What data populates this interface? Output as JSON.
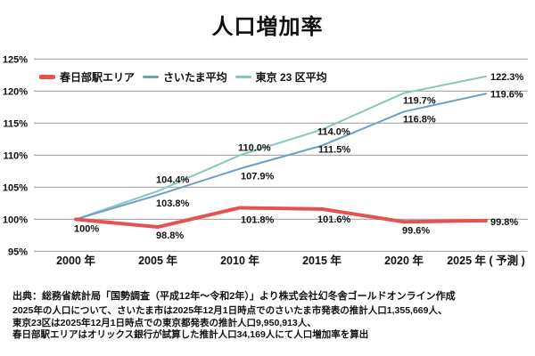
{
  "title": "人口増加率",
  "source": "出典：総務省統計局「国勢調査（平成12年～令和2年）」より株式会社幻冬舎ゴールドオンライン作成",
  "notes": [
    "2025年の人口について、さいたま市は2025年12月1日時点でのさいたま市発表の推計人口1,355,669人、",
    "東京23区は2025年12月1日時点での東京都発表の推計人口9,950,913人、",
    "春日部駅エリアはオリックス銀行が試算した推計人口34,169人にて人口増加率を算出"
  ],
  "chart_data": {
    "type": "line",
    "title": "人口増加率",
    "categories": [
      "2000 年",
      "2005 年",
      "2010 年",
      "2015 年",
      "2020 年",
      "2025 年 ( 予測 )"
    ],
    "series": [
      {
        "name": "春日部駅エリア",
        "color": "#e4534f",
        "line_width": 4,
        "values": [
          100,
          98.8,
          101.8,
          101.6,
          99.6,
          99.8
        ],
        "labels": [
          "100%",
          "98.8%",
          "101.8%",
          "101.6%",
          "99.6%",
          "99.8%"
        ]
      },
      {
        "name": "さいたま平均",
        "color": "#6f9ec6",
        "line_width": 2,
        "values": [
          100,
          103.8,
          107.9,
          111.5,
          116.8,
          119.6
        ],
        "labels": [
          null,
          "103.8%",
          "107.9%",
          "111.5%",
          "116.8%",
          "119.6%"
        ]
      },
      {
        "name": "東京 23 区平均",
        "color": "#87c6bc",
        "line_width": 2,
        "values": [
          100,
          104.4,
          110.0,
          114.0,
          119.7,
          122.3
        ],
        "labels": [
          null,
          "104.4%",
          "110.0%",
          "114.0%",
          "119.7%",
          "122.3%"
        ]
      }
    ],
    "ylim": [
      95,
      125
    ],
    "ytick_step": 5,
    "ytick_labels": [
      "95%",
      "100%",
      "105%",
      "110%",
      "115%",
      "120%",
      "125%"
    ],
    "grid": true,
    "gridline_color": "#adadad",
    "legend_position": "top-left-inside"
  }
}
